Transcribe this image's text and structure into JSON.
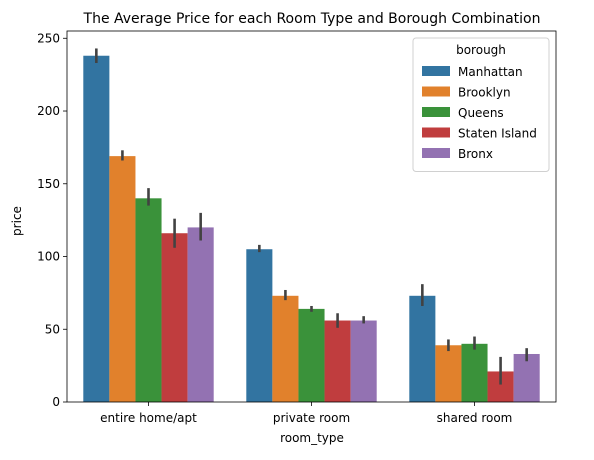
{
  "chart_data": {
    "type": "bar",
    "title": "The Average Price for each Room Type and Borough Combination",
    "xlabel": "room_type",
    "ylabel": "price",
    "categories": [
      "entire home/apt",
      "private room",
      "shared room"
    ],
    "ylim": [
      0,
      255
    ],
    "yticks": [
      0,
      50,
      100,
      150,
      200,
      250
    ],
    "grid": false,
    "legend": {
      "title": "borough",
      "placement": "top-right"
    },
    "series": [
      {
        "name": "Manhattan",
        "color": "#3274a1",
        "values": [
          238,
          105,
          73
        ],
        "ci": [
          [
            233,
            243
          ],
          [
            103,
            108
          ],
          [
            66,
            81
          ]
        ]
      },
      {
        "name": "Brooklyn",
        "color": "#e1812c",
        "values": [
          169,
          73,
          39
        ],
        "ci": [
          [
            166,
            173
          ],
          [
            70,
            77
          ],
          [
            35,
            43
          ]
        ]
      },
      {
        "name": "Queens",
        "color": "#3a923a",
        "values": [
          140,
          64,
          40
        ],
        "ci": [
          [
            135,
            147
          ],
          [
            62,
            66
          ],
          [
            36,
            45
          ]
        ]
      },
      {
        "name": "Staten Island",
        "color": "#c03d3e",
        "values": [
          116,
          56,
          21
        ],
        "ci": [
          [
            106,
            126
          ],
          [
            51,
            61
          ],
          [
            12,
            31
          ]
        ]
      },
      {
        "name": "Bronx",
        "color": "#9372b2",
        "values": [
          120,
          56,
          33
        ],
        "ci": [
          [
            111,
            130
          ],
          [
            54,
            59
          ],
          [
            28,
            37
          ]
        ]
      }
    ]
  }
}
